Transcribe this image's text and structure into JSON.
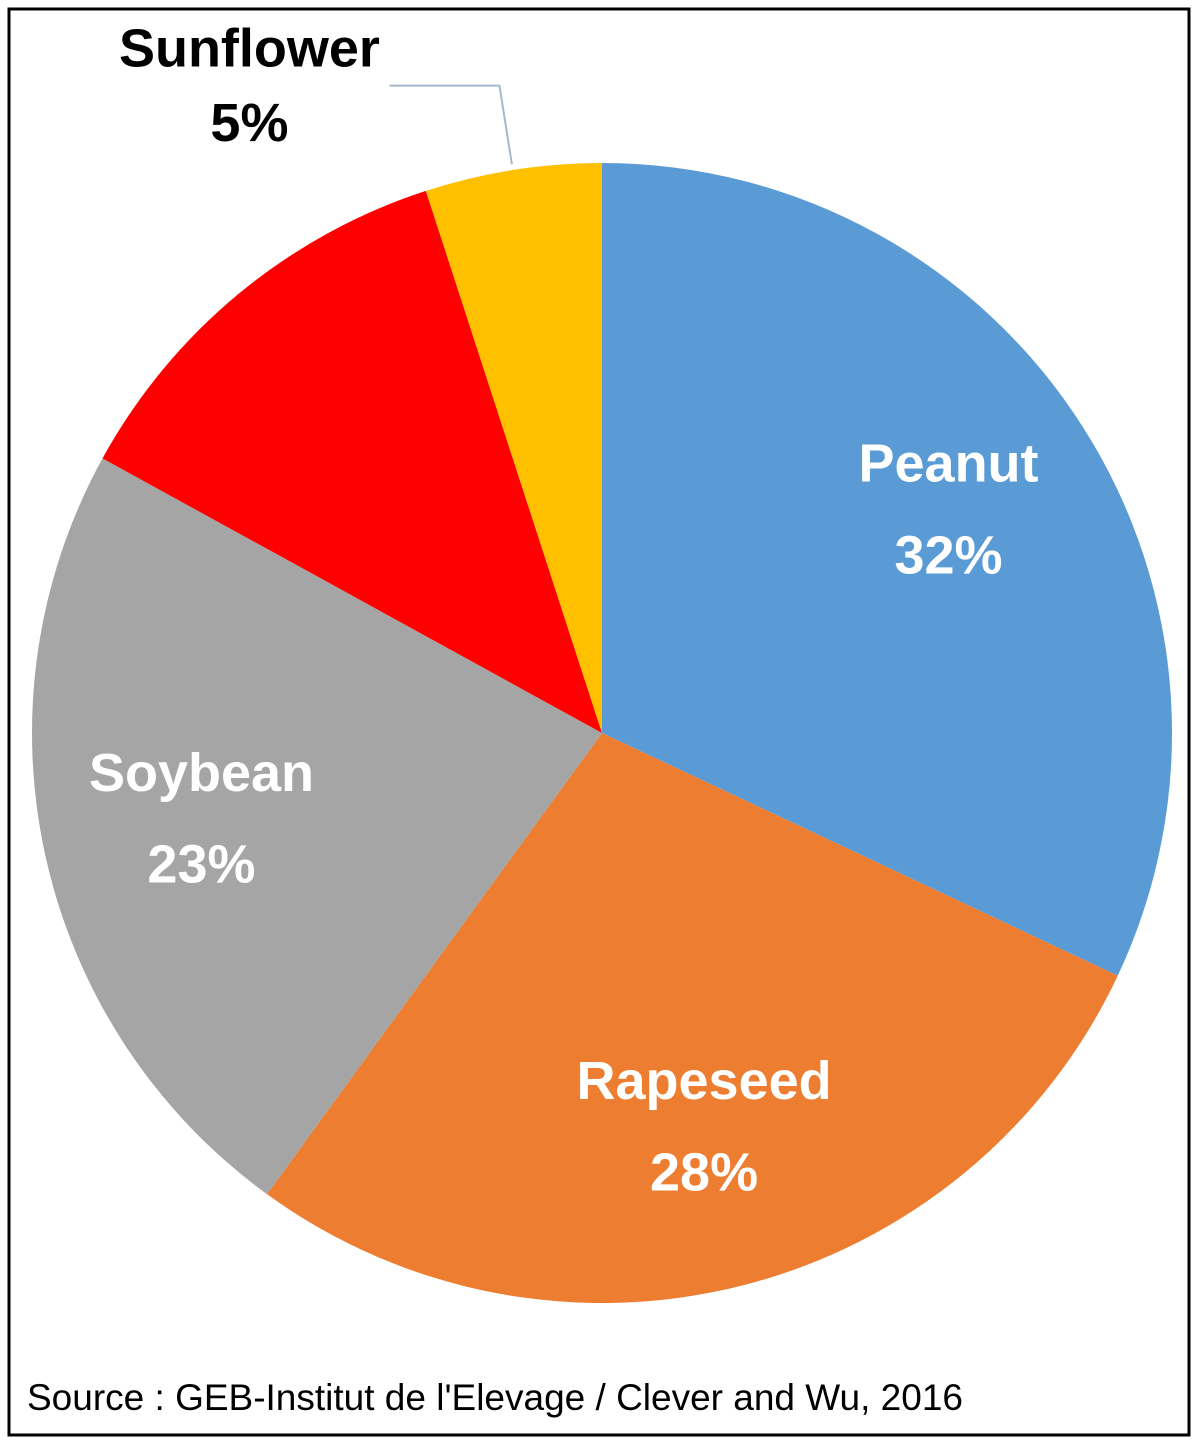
{
  "chart_data": {
    "type": "pie",
    "categories": [
      "Peanut",
      "Rapeseed",
      "Soybean",
      null,
      "Sunflower"
    ],
    "values": [
      32,
      28,
      23,
      12,
      5
    ],
    "value_labels": [
      "32%",
      "28%",
      "23%",
      null,
      "5%"
    ],
    "colors": [
      "#5b9bd5",
      "#ed7d31",
      "#a5a5a5",
      "#ff0000",
      "#ffc000"
    ],
    "source": "Source : GEB-Institut de l'Elevage / Clever and Wu, 2016"
  }
}
